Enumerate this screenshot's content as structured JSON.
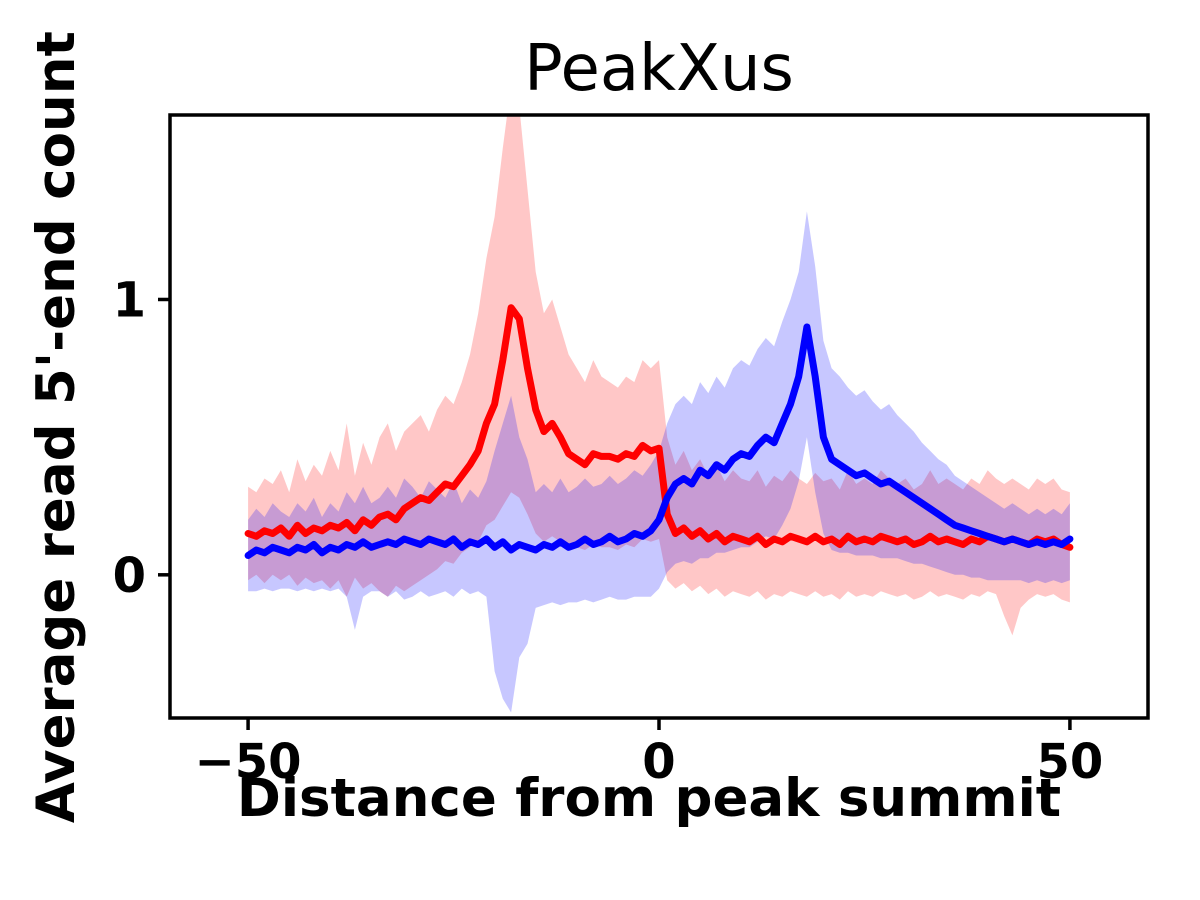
{
  "chart_data": {
    "type": "line",
    "title": "PeakXus",
    "xlabel": "Distance from peak summit",
    "ylabel": "Average read 5'-end count",
    "xlim": [
      -59.5,
      59.5
    ],
    "ylim": [
      -0.52,
      1.67
    ],
    "grid": false,
    "legend": "none",
    "band_opacity": 0.22,
    "x_start": -50,
    "x_end": 50,
    "x_step": 1,
    "xticks": [
      {
        "value": -50,
        "label": "−50"
      },
      {
        "value": 0,
        "label": "0"
      },
      {
        "value": 50,
        "label": "50"
      }
    ],
    "yticks": [
      {
        "value": 0,
        "label": "0"
      },
      {
        "value": 1,
        "label": "1"
      }
    ],
    "series": [
      {
        "name": "red",
        "color": "#ff0000",
        "values": [
          0.15,
          0.14,
          0.16,
          0.15,
          0.17,
          0.14,
          0.18,
          0.15,
          0.17,
          0.16,
          0.18,
          0.17,
          0.19,
          0.16,
          0.2,
          0.18,
          0.21,
          0.22,
          0.2,
          0.24,
          0.26,
          0.28,
          0.27,
          0.3,
          0.33,
          0.32,
          0.36,
          0.4,
          0.45,
          0.55,
          0.62,
          0.78,
          0.97,
          0.93,
          0.75,
          0.6,
          0.52,
          0.55,
          0.5,
          0.44,
          0.42,
          0.4,
          0.44,
          0.43,
          0.43,
          0.42,
          0.44,
          0.43,
          0.47,
          0.45,
          0.46,
          0.22,
          0.15,
          0.17,
          0.14,
          0.16,
          0.13,
          0.15,
          0.12,
          0.14,
          0.13,
          0.12,
          0.14,
          0.11,
          0.13,
          0.12,
          0.14,
          0.13,
          0.12,
          0.14,
          0.12,
          0.13,
          0.11,
          0.14,
          0.12,
          0.13,
          0.12,
          0.14,
          0.13,
          0.12,
          0.13,
          0.11,
          0.12,
          0.14,
          0.12,
          0.13,
          0.12,
          0.11,
          0.13,
          0.12,
          0.14,
          0.13,
          0.12,
          0.13,
          0.12,
          0.11,
          0.13,
          0.12,
          0.13,
          0.11,
          0.1
        ],
        "upper": [
          0.32,
          0.3,
          0.35,
          0.33,
          0.38,
          0.3,
          0.42,
          0.34,
          0.4,
          0.36,
          0.45,
          0.38,
          0.55,
          0.36,
          0.48,
          0.4,
          0.5,
          0.55,
          0.45,
          0.52,
          0.55,
          0.58,
          0.52,
          0.6,
          0.65,
          0.62,
          0.7,
          0.8,
          0.95,
          1.15,
          1.3,
          1.55,
          1.78,
          1.7,
          1.4,
          1.1,
          0.95,
          1.0,
          0.9,
          0.8,
          0.75,
          0.7,
          0.78,
          0.72,
          0.7,
          0.68,
          0.72,
          0.7,
          0.78,
          0.75,
          0.78,
          0.5,
          0.4,
          0.45,
          0.38,
          0.42,
          0.36,
          0.4,
          0.34,
          0.38,
          0.35,
          0.34,
          0.38,
          0.32,
          0.36,
          0.34,
          0.38,
          0.35,
          0.33,
          0.37,
          0.34,
          0.35,
          0.31,
          0.38,
          0.33,
          0.35,
          0.33,
          0.38,
          0.35,
          0.33,
          0.35,
          0.31,
          0.33,
          0.38,
          0.33,
          0.35,
          0.33,
          0.31,
          0.35,
          0.33,
          0.38,
          0.35,
          0.33,
          0.35,
          0.33,
          0.31,
          0.35,
          0.33,
          0.35,
          0.31,
          0.3
        ],
        "lower": [
          -0.02,
          0.0,
          -0.03,
          0.0,
          -0.02,
          0.0,
          -0.04,
          -0.01,
          -0.03,
          -0.02,
          -0.05,
          -0.02,
          -0.08,
          -0.01,
          -0.05,
          -0.03,
          -0.06,
          -0.08,
          -0.04,
          -0.06,
          -0.04,
          -0.02,
          0.0,
          0.02,
          0.05,
          0.04,
          0.08,
          0.1,
          0.12,
          0.18,
          0.2,
          0.25,
          0.3,
          0.28,
          0.22,
          0.15,
          0.12,
          0.14,
          0.12,
          0.1,
          0.1,
          0.09,
          0.11,
          0.1,
          0.1,
          0.09,
          0.11,
          0.1,
          0.13,
          0.12,
          0.13,
          -0.02,
          -0.05,
          -0.03,
          -0.06,
          -0.04,
          -0.07,
          -0.05,
          -0.08,
          -0.06,
          -0.07,
          -0.08,
          -0.06,
          -0.09,
          -0.07,
          -0.08,
          -0.06,
          -0.07,
          -0.08,
          -0.06,
          -0.08,
          -0.07,
          -0.09,
          -0.06,
          -0.08,
          -0.07,
          -0.08,
          -0.06,
          -0.07,
          -0.08,
          -0.07,
          -0.09,
          -0.08,
          -0.06,
          -0.08,
          -0.07,
          -0.08,
          -0.09,
          -0.07,
          -0.08,
          -0.06,
          -0.07,
          -0.15,
          -0.22,
          -0.12,
          -0.09,
          -0.07,
          -0.08,
          -0.07,
          -0.09,
          -0.1
        ]
      },
      {
        "name": "blue",
        "color": "#0000ff",
        "values": [
          0.07,
          0.09,
          0.08,
          0.1,
          0.09,
          0.08,
          0.1,
          0.09,
          0.11,
          0.08,
          0.1,
          0.09,
          0.11,
          0.1,
          0.12,
          0.1,
          0.11,
          0.12,
          0.11,
          0.13,
          0.12,
          0.11,
          0.13,
          0.12,
          0.11,
          0.13,
          0.1,
          0.12,
          0.11,
          0.13,
          0.1,
          0.12,
          0.09,
          0.11,
          0.1,
          0.09,
          0.11,
          0.1,
          0.12,
          0.1,
          0.11,
          0.13,
          0.11,
          0.12,
          0.14,
          0.12,
          0.13,
          0.15,
          0.14,
          0.16,
          0.2,
          0.28,
          0.33,
          0.35,
          0.33,
          0.38,
          0.36,
          0.4,
          0.38,
          0.42,
          0.44,
          0.43,
          0.47,
          0.5,
          0.48,
          0.55,
          0.62,
          0.72,
          0.9,
          0.72,
          0.5,
          0.42,
          0.4,
          0.38,
          0.36,
          0.37,
          0.35,
          0.33,
          0.34,
          0.32,
          0.3,
          0.28,
          0.26,
          0.24,
          0.22,
          0.2,
          0.18,
          0.17,
          0.16,
          0.15,
          0.14,
          0.13,
          0.12,
          0.13,
          0.12,
          0.11,
          0.12,
          0.11,
          0.12,
          0.11,
          0.13
        ],
        "upper": [
          0.2,
          0.24,
          0.21,
          0.26,
          0.23,
          0.21,
          0.26,
          0.23,
          0.28,
          0.21,
          0.26,
          0.23,
          0.3,
          0.26,
          0.32,
          0.26,
          0.28,
          0.32,
          0.28,
          0.35,
          0.32,
          0.28,
          0.34,
          0.31,
          0.28,
          0.34,
          0.26,
          0.31,
          0.28,
          0.34,
          0.45,
          0.55,
          0.65,
          0.5,
          0.42,
          0.3,
          0.33,
          0.3,
          0.35,
          0.3,
          0.32,
          0.35,
          0.32,
          0.33,
          0.36,
          0.33,
          0.35,
          0.38,
          0.36,
          0.4,
          0.45,
          0.55,
          0.62,
          0.65,
          0.62,
          0.7,
          0.66,
          0.72,
          0.68,
          0.75,
          0.78,
          0.76,
          0.82,
          0.86,
          0.83,
          0.92,
          1.0,
          1.1,
          1.32,
          1.12,
          0.85,
          0.75,
          0.72,
          0.68,
          0.65,
          0.67,
          0.63,
          0.6,
          0.62,
          0.58,
          0.55,
          0.52,
          0.48,
          0.45,
          0.42,
          0.4,
          0.36,
          0.34,
          0.32,
          0.3,
          0.28,
          0.26,
          0.24,
          0.26,
          0.24,
          0.22,
          0.24,
          0.22,
          0.24,
          0.22,
          0.26
        ],
        "lower": [
          -0.06,
          -0.06,
          -0.05,
          -0.06,
          -0.05,
          -0.05,
          -0.06,
          -0.05,
          -0.06,
          -0.05,
          -0.06,
          -0.05,
          -0.08,
          -0.2,
          -0.08,
          -0.06,
          -0.06,
          -0.08,
          -0.06,
          -0.09,
          -0.08,
          -0.06,
          -0.08,
          -0.07,
          -0.06,
          -0.08,
          -0.05,
          -0.07,
          -0.06,
          -0.08,
          -0.35,
          -0.45,
          -0.5,
          -0.3,
          -0.25,
          -0.12,
          -0.11,
          -0.1,
          -0.11,
          -0.1,
          -0.1,
          -0.09,
          -0.1,
          -0.09,
          -0.08,
          -0.09,
          -0.09,
          -0.08,
          -0.08,
          -0.08,
          -0.05,
          0.01,
          0.04,
          0.05,
          0.04,
          0.06,
          0.06,
          0.08,
          0.08,
          0.09,
          0.1,
          0.1,
          0.12,
          0.14,
          0.13,
          0.18,
          0.24,
          0.34,
          0.5,
          0.3,
          0.15,
          0.09,
          0.08,
          0.08,
          0.07,
          0.07,
          0.07,
          0.06,
          0.06,
          0.06,
          0.05,
          0.04,
          0.04,
          0.03,
          0.02,
          0.01,
          0.0,
          0.0,
          -0.01,
          -0.01,
          -0.02,
          -0.02,
          -0.02,
          -0.02,
          -0.02,
          -0.03,
          -0.02,
          -0.03,
          -0.02,
          -0.03,
          -0.02
        ]
      }
    ]
  }
}
